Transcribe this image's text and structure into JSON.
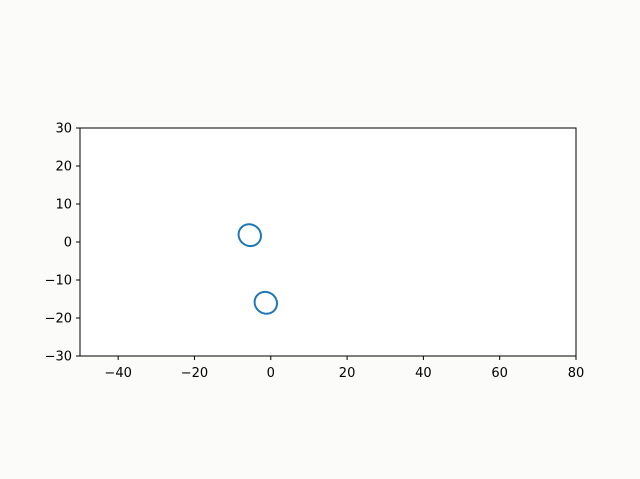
{
  "chart_data": {
    "type": "line",
    "title": "",
    "xlabel": "",
    "ylabel": "",
    "xlim": [
      -50,
      80
    ],
    "ylim": [
      -30,
      30
    ],
    "grid": false,
    "x_ticks": [
      -40,
      -20,
      0,
      20,
      40,
      60,
      80
    ],
    "x_tick_labels": [
      "−40",
      "−20",
      "0",
      "20",
      "40",
      "60",
      "80"
    ],
    "y_ticks": [
      -30,
      -20,
      -10,
      0,
      10,
      20,
      30
    ],
    "y_tick_labels": [
      "−30",
      "−20",
      "−10",
      "0",
      "10",
      "20",
      "30"
    ],
    "series_color": "#1f77b4",
    "series": [
      {
        "shape": "ellipse",
        "center": [
          -5.5,
          1.8
        ],
        "semi_axis_x": 3.0,
        "semi_axis_y": 2.8,
        "rotation_deg": -35
      },
      {
        "shape": "ellipse",
        "center": [
          -1.3,
          -16.0
        ],
        "semi_axis_x": 3.0,
        "semi_axis_y": 2.8,
        "rotation_deg": -35
      }
    ]
  }
}
